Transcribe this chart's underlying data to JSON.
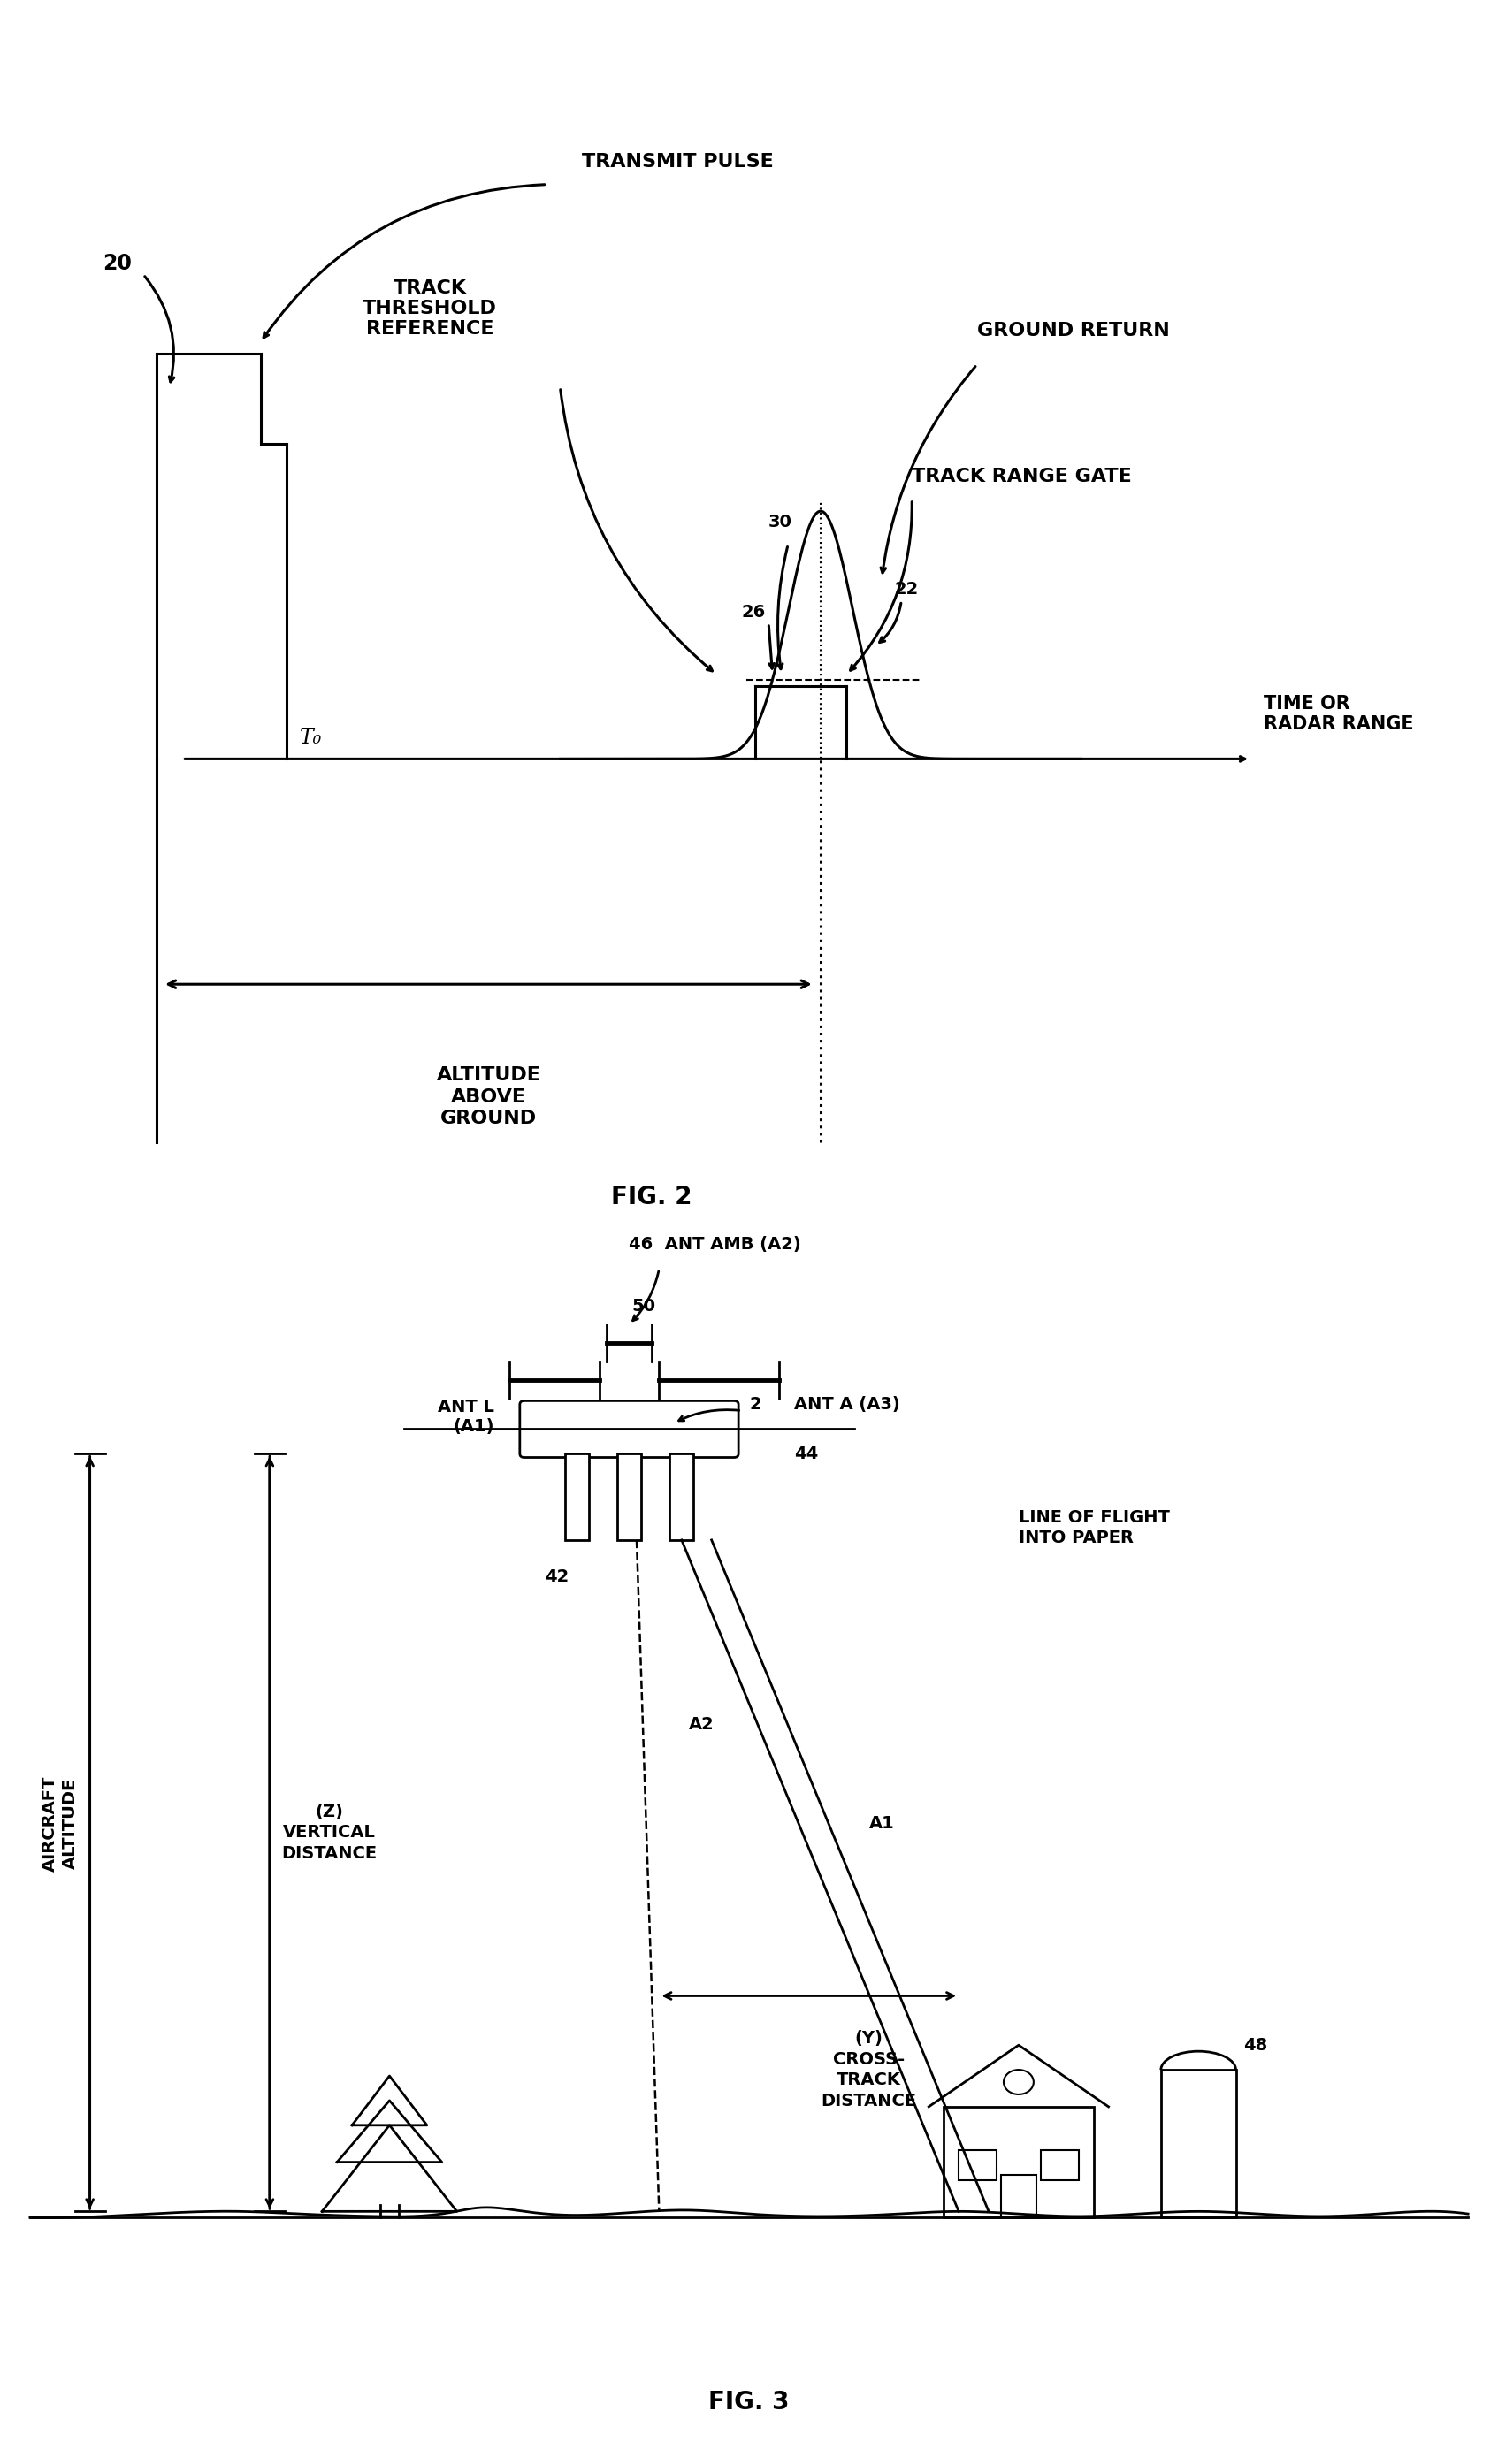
{
  "fig_width": 16.94,
  "fig_height": 27.87,
  "bg_color": "#ffffff",
  "line_color": "#000000",
  "fig2": {
    "title": "FIG. 2",
    "transmit_pulse": "TRANSMIT PULSE",
    "track_threshold": "TRACK\nTHRESHOLD\nREFERENCE",
    "ground_return": "GROUND RETURN",
    "track_range_gate": "TRACK RANGE GATE",
    "time_radar_range": "TIME OR\nRADAR RANGE",
    "altitude_above_ground": "ALTITUDE\nABOVE\nGROUND",
    "T0": "T₀",
    "num20": "20",
    "num22": "22",
    "num26": "26",
    "num30": "30"
  },
  "fig3": {
    "title": "FIG. 3",
    "ant_amb": "46  ANT AMB (A2)",
    "num50": "50",
    "ant_l": "ANT L\n(A1)",
    "num2": "2",
    "ant_a": "ANT A (A3)",
    "num42": "42",
    "num44": "44",
    "line_of_flight": "LINE OF FLIGHT\nINTO PAPER",
    "z_vertical": "(Z)\nVERTICAL\nDISTANCE",
    "aircraft_altitude": "AIRCRAFT\nALTITUDE",
    "y_cross_track": "(Y)\nCROSS-\nTRACK\nDISTANCE",
    "A2_label": "A2",
    "A1_label": "A1",
    "num48": "48"
  }
}
